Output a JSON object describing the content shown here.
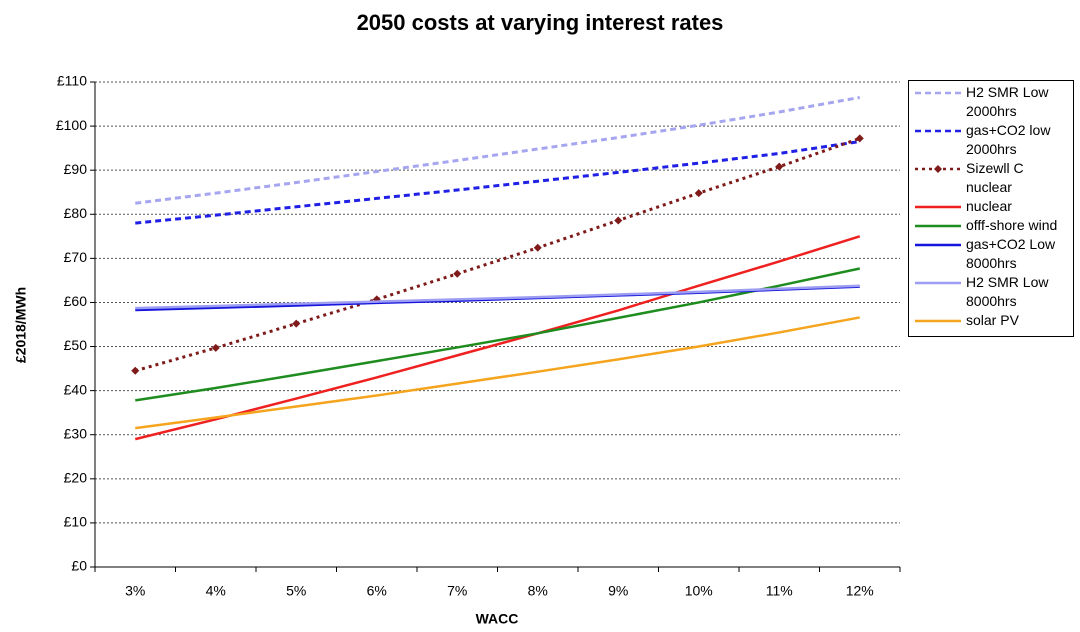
{
  "chart_data": {
    "type": "line",
    "title": "2050 costs at varying interest rates",
    "x_label": "WACC",
    "y_label": "£2018/MWh",
    "categories": [
      "3%",
      "4%",
      "5%",
      "6%",
      "7%",
      "8%",
      "9%",
      "10%",
      "11%",
      "12%"
    ],
    "ylim": [
      0,
      110
    ],
    "yticks": [
      {
        "value": 0,
        "label": "£0"
      },
      {
        "value": 10,
        "label": "£10"
      },
      {
        "value": 20,
        "label": "£20"
      },
      {
        "value": 30,
        "label": "£30"
      },
      {
        "value": 40,
        "label": "£40"
      },
      {
        "value": 50,
        "label": "£50"
      },
      {
        "value": 60,
        "label": "£60"
      },
      {
        "value": 70,
        "label": "£70"
      },
      {
        "value": 80,
        "label": "£80"
      },
      {
        "value": 90,
        "label": "£90"
      },
      {
        "value": 100,
        "label": "£100"
      },
      {
        "value": 110,
        "label": "£110"
      }
    ],
    "grid": true,
    "legend": "right",
    "series": [
      {
        "name": "H2 SMR Low 2000hrs",
        "color": "#a6a6f0",
        "dash": "dashed",
        "values": [
          82.5,
          84.8,
          87.2,
          89.7,
          92.2,
          94.8,
          97.4,
          100.2,
          103.2,
          106.5
        ]
      },
      {
        "name": "gas+CO2 low 2000hrs",
        "color": "#1f1fe6",
        "dash": "dashed",
        "values": [
          78,
          79.8,
          81.7,
          83.6,
          85.5,
          87.5,
          89.5,
          91.6,
          93.8,
          96.5
        ]
      },
      {
        "name": "Sizewll C nuclear",
        "color": "#7f1a1a",
        "dash": "dotted",
        "marker": "diamond",
        "values": [
          44.5,
          49.7,
          55.2,
          60.7,
          66.5,
          72.4,
          78.6,
          84.8,
          90.8,
          97.2
        ]
      },
      {
        "name": "nuclear",
        "color": "#ee2020",
        "dash": "solid",
        "values": [
          29,
          33.5,
          38.2,
          43,
          48,
          53,
          58.2,
          63.8,
          69.3,
          75
        ]
      },
      {
        "name": "offf-shore wind",
        "color": "#1e8c1e",
        "dash": "solid",
        "values": [
          37.8,
          40.6,
          43.6,
          46.7,
          49.8,
          53,
          56.5,
          60,
          63.8,
          67.7
        ]
      },
      {
        "name": "gas+CO2 Low 8000hrs",
        "color": "#1515dd",
        "dash": "solid",
        "values": [
          58.3,
          58.8,
          59.3,
          59.9,
          60.4,
          61,
          61.6,
          62.2,
          62.9,
          63.6
        ]
      },
      {
        "name": "H2 SMR Low 8000hrs",
        "color": "#9d9df2",
        "dash": "solid",
        "values": [
          58.7,
          59.2,
          59.7,
          60.2,
          60.7,
          61.2,
          61.8,
          62.4,
          63.1,
          63.8
        ]
      },
      {
        "name": "solar PV",
        "color": "#f5a41e",
        "dash": "solid",
        "values": [
          31.5,
          33.9,
          36.4,
          38.9,
          41.6,
          44.3,
          47.1,
          50,
          53.2,
          56.6
        ]
      }
    ]
  }
}
